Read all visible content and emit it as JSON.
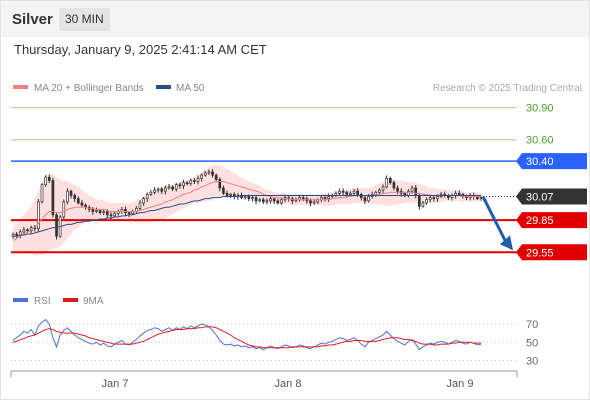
{
  "header": {
    "title": "Silver",
    "timeframe": "30 MIN"
  },
  "datetime": "Thursday, January 9, 2025 2:41:14 AM CET",
  "legend": {
    "ma20": "MA 20 + Bollinger Bands",
    "ma50": "MA 50",
    "copyright": "Research © 2025 Trading Central"
  },
  "rsi_legend": {
    "rsi": "RSI",
    "ma9": "9MA"
  },
  "colors": {
    "resistance": "#2962ff",
    "support": "#e00000",
    "target_line": "#a5d68a",
    "target_text": "#4c9a2a",
    "candle": "#333333",
    "ma20": "#f08080",
    "ma50": "#2b4c8c",
    "band": "#ffd6d6",
    "pivot": "#333333",
    "rsi": "#4a73d9",
    "rsi_ma": "#d62020",
    "arrow": "#1f5fa8"
  },
  "chart_data": [
    {
      "type": "candlestick",
      "title": "Silver",
      "timeframe": "30 MIN",
      "ylim": [
        29.45,
        30.98
      ],
      "x_ticks": [
        "Jan 7",
        "Jan 8",
        "Jan 9"
      ],
      "levels": [
        {
          "label": "30.90",
          "value": 30.9,
          "kind": "target"
        },
        {
          "label": "30.60",
          "value": 30.6,
          "kind": "target"
        },
        {
          "label": "30.40",
          "value": 30.4,
          "kind": "resistance"
        },
        {
          "label": "30.07",
          "value": 30.07,
          "kind": "pivot"
        },
        {
          "label": "29.85",
          "value": 29.85,
          "kind": "support"
        },
        {
          "label": "29.55",
          "value": 29.55,
          "kind": "support"
        }
      ],
      "forecast_arrow": {
        "from": 30.07,
        "to": 29.55
      },
      "closes": [
        29.72,
        29.71,
        29.74,
        29.76,
        29.75,
        29.78,
        29.77,
        30.02,
        30.18,
        30.25,
        30.22,
        29.9,
        29.7,
        29.88,
        30.02,
        30.12,
        30.08,
        30.05,
        30.01,
        29.99,
        29.97,
        29.95,
        29.93,
        29.94,
        29.92,
        29.93,
        29.9,
        29.89,
        29.91,
        29.93,
        29.95,
        29.92,
        29.91,
        29.93,
        29.96,
        30.01,
        30.05,
        30.09,
        30.11,
        30.13,
        30.14,
        30.12,
        30.15,
        30.16,
        30.14,
        30.18,
        30.17,
        30.2,
        30.19,
        30.22,
        30.21,
        30.24,
        30.27,
        30.29,
        30.3,
        30.27,
        30.23,
        30.15,
        30.1,
        30.08,
        30.09,
        30.07,
        30.08,
        30.06,
        30.07,
        30.05,
        30.06,
        30.03,
        30.04,
        30.02,
        30.03,
        30.05,
        30.03,
        30.01,
        30.04,
        30.06,
        30.05,
        30.03,
        30.04,
        30.06,
        30.05,
        30.03,
        30.01,
        30.02,
        30.04,
        30.06,
        30.05,
        30.07,
        30.08,
        30.1,
        30.12,
        30.11,
        30.09,
        30.1,
        30.12,
        30.09,
        30.06,
        30.03,
        30.07,
        30.09,
        30.11,
        30.13,
        30.16,
        30.24,
        30.2,
        30.15,
        30.12,
        30.1,
        30.08,
        30.12,
        30.15,
        30.08,
        29.98,
        30.01,
        30.04,
        30.06,
        30.05,
        30.07,
        30.09,
        30.08,
        30.06,
        30.08,
        30.1,
        30.09,
        30.07,
        30.06,
        30.08,
        30.07,
        30.05,
        30.06
      ],
      "ma20": [
        29.66,
        29.68,
        29.7,
        29.72,
        29.74,
        29.76,
        29.78,
        29.82,
        29.86,
        29.9,
        29.93,
        29.93,
        29.92,
        29.92,
        29.93,
        29.95,
        29.96,
        29.97,
        29.97,
        29.97,
        29.97,
        29.96,
        29.96,
        29.95,
        29.95,
        29.95,
        29.94,
        29.93,
        29.93,
        29.93,
        29.93,
        29.93,
        29.93,
        29.93,
        29.93,
        29.94,
        29.95,
        29.96,
        29.97,
        29.98,
        29.99,
        30.0,
        30.02,
        30.03,
        30.04,
        30.06,
        30.07,
        30.09,
        30.1,
        30.11,
        30.13,
        30.14,
        30.16,
        30.17,
        30.19,
        30.2,
        30.21,
        30.21,
        30.21,
        30.2,
        30.19,
        30.18,
        30.17,
        30.16,
        30.15,
        30.14,
        30.13,
        30.12,
        30.11,
        30.09,
        30.08,
        30.07,
        30.06,
        30.06,
        30.05,
        30.05,
        30.05,
        30.04,
        30.04,
        30.04,
        30.04,
        30.04,
        30.04,
        30.04,
        30.04,
        30.04,
        30.04,
        30.04,
        30.05,
        30.05,
        30.06,
        30.06,
        30.07,
        30.07,
        30.08,
        30.08,
        30.08,
        30.08,
        30.08,
        30.08,
        30.09,
        30.09,
        30.1,
        30.1,
        30.11,
        30.11,
        30.11,
        30.11,
        30.11,
        30.11,
        30.11,
        30.1,
        30.1,
        30.09,
        30.09,
        30.08,
        30.08,
        30.08,
        30.08,
        30.08,
        30.08,
        30.08,
        30.08,
        30.08,
        30.07,
        30.07,
        30.07,
        30.07,
        30.07,
        30.07
      ],
      "ma50": [
        29.7,
        29.7,
        29.71,
        29.71,
        29.72,
        29.72,
        29.73,
        29.74,
        29.75,
        29.76,
        29.77,
        29.78,
        29.78,
        29.79,
        29.8,
        29.81,
        29.81,
        29.82,
        29.83,
        29.83,
        29.84,
        29.84,
        29.85,
        29.85,
        29.86,
        29.86,
        29.87,
        29.87,
        29.88,
        29.88,
        29.89,
        29.89,
        29.9,
        29.9,
        29.91,
        29.92,
        29.92,
        29.93,
        29.94,
        29.94,
        29.95,
        29.96,
        29.97,
        29.97,
        29.98,
        29.99,
        30.0,
        30.0,
        30.01,
        30.02,
        30.03,
        30.03,
        30.04,
        30.05,
        30.05,
        30.06,
        30.06,
        30.06,
        30.07,
        30.07,
        30.07,
        30.07,
        30.07,
        30.08,
        30.08,
        30.08,
        30.08,
        30.08,
        30.08,
        30.08,
        30.08,
        30.08,
        30.08,
        30.08,
        30.08,
        30.08,
        30.08,
        30.08,
        30.08,
        30.08,
        30.08,
        30.08,
        30.08,
        30.08,
        30.08,
        30.08,
        30.08,
        30.08,
        30.08,
        30.08,
        30.08,
        30.08,
        30.08,
        30.08,
        30.08,
        30.08,
        30.08,
        30.08,
        30.08,
        30.08,
        30.08,
        30.08,
        30.08,
        30.08,
        30.08,
        30.08,
        30.08,
        30.08,
        30.08,
        30.08,
        30.08,
        30.08,
        30.08,
        30.08,
        30.08,
        30.08,
        30.08,
        30.08,
        30.08,
        30.08,
        30.08,
        30.08,
        30.08,
        30.08,
        30.08,
        30.08,
        30.08,
        30.08,
        30.08,
        30.08
      ],
      "band_width": [
        0.12,
        0.14,
        0.16,
        0.18,
        0.2,
        0.22,
        0.26,
        0.3,
        0.34,
        0.36,
        0.36,
        0.35,
        0.33,
        0.31,
        0.29,
        0.27,
        0.24,
        0.21,
        0.19,
        0.16,
        0.14,
        0.12,
        0.1,
        0.09,
        0.09,
        0.08,
        0.08,
        0.08,
        0.08,
        0.08,
        0.08,
        0.08,
        0.08,
        0.09,
        0.1,
        0.11,
        0.12,
        0.13,
        0.14,
        0.14,
        0.15,
        0.15,
        0.15,
        0.14,
        0.14,
        0.13,
        0.13,
        0.12,
        0.12,
        0.12,
        0.12,
        0.13,
        0.14,
        0.15,
        0.16,
        0.16,
        0.16,
        0.15,
        0.14,
        0.13,
        0.12,
        0.11,
        0.1,
        0.09,
        0.08,
        0.07,
        0.07,
        0.06,
        0.06,
        0.06,
        0.05,
        0.05,
        0.05,
        0.05,
        0.05,
        0.05,
        0.05,
        0.05,
        0.05,
        0.05,
        0.05,
        0.05,
        0.05,
        0.05,
        0.05,
        0.05,
        0.06,
        0.06,
        0.06,
        0.06,
        0.06,
        0.06,
        0.07,
        0.07,
        0.07,
        0.07,
        0.07,
        0.07,
        0.07,
        0.08,
        0.09,
        0.1,
        0.11,
        0.12,
        0.12,
        0.12,
        0.11,
        0.11,
        0.1,
        0.1,
        0.1,
        0.1,
        0.09,
        0.08,
        0.08,
        0.07,
        0.07,
        0.06,
        0.06,
        0.05,
        0.05,
        0.05,
        0.05,
        0.05,
        0.05,
        0.04,
        0.04,
        0.04,
        0.04,
        0.04
      ]
    },
    {
      "type": "line",
      "title": "RSI",
      "ylim": [
        25,
        80
      ],
      "y_ticks": [
        70,
        50,
        30
      ],
      "series": [
        {
          "name": "RSI",
          "values": [
            52,
            55,
            58,
            62,
            60,
            64,
            58,
            68,
            72,
            75,
            70,
            55,
            45,
            58,
            63,
            66,
            62,
            58,
            55,
            53,
            51,
            49,
            48,
            50,
            47,
            49,
            46,
            45,
            48,
            50,
            52,
            48,
            47,
            50,
            53,
            57,
            60,
            63,
            64,
            66,
            65,
            62,
            64,
            66,
            63,
            66,
            64,
            67,
            65,
            68,
            66,
            68,
            70,
            69,
            67,
            63,
            58,
            52,
            48,
            47,
            48,
            46,
            47,
            45,
            46,
            44,
            45,
            43,
            44,
            42,
            44,
            46,
            44,
            43,
            45,
            47,
            46,
            44,
            45,
            47,
            46,
            44,
            43,
            45,
            47,
            49,
            48,
            50,
            51,
            53,
            55,
            54,
            52,
            53,
            55,
            52,
            48,
            45,
            50,
            52,
            54,
            56,
            58,
            62,
            58,
            54,
            51,
            49,
            47,
            51,
            53,
            48,
            42,
            45,
            47,
            49,
            48,
            50,
            51,
            50,
            48,
            50,
            52,
            51,
            49,
            48,
            50,
            49,
            47,
            48
          ]
        },
        {
          "name": "9MA",
          "values": [
            50,
            51,
            53,
            54,
            56,
            57,
            58,
            60,
            62,
            64,
            65,
            64,
            62,
            61,
            60,
            60,
            60,
            60,
            59,
            58,
            57,
            55,
            54,
            53,
            52,
            51,
            50,
            49,
            48,
            48,
            48,
            48,
            48,
            48,
            49,
            50,
            51,
            53,
            55,
            57,
            59,
            60,
            61,
            62,
            63,
            64,
            64,
            64,
            65,
            65,
            65,
            66,
            66,
            67,
            67,
            67,
            66,
            64,
            62,
            60,
            58,
            55,
            53,
            51,
            49,
            47,
            46,
            45,
            45,
            44,
            44,
            44,
            44,
            44,
            44,
            44,
            44,
            45,
            45,
            45,
            45,
            45,
            45,
            45,
            45,
            46,
            46,
            47,
            47,
            48,
            49,
            50,
            51,
            51,
            52,
            52,
            52,
            51,
            51,
            51,
            51,
            52,
            53,
            54,
            55,
            55,
            55,
            54,
            53,
            53,
            52,
            51,
            49,
            48,
            48,
            48,
            47,
            47,
            48,
            48,
            48,
            49,
            49,
            50,
            50,
            50,
            50,
            49,
            49,
            49
          ]
        }
      ]
    }
  ]
}
